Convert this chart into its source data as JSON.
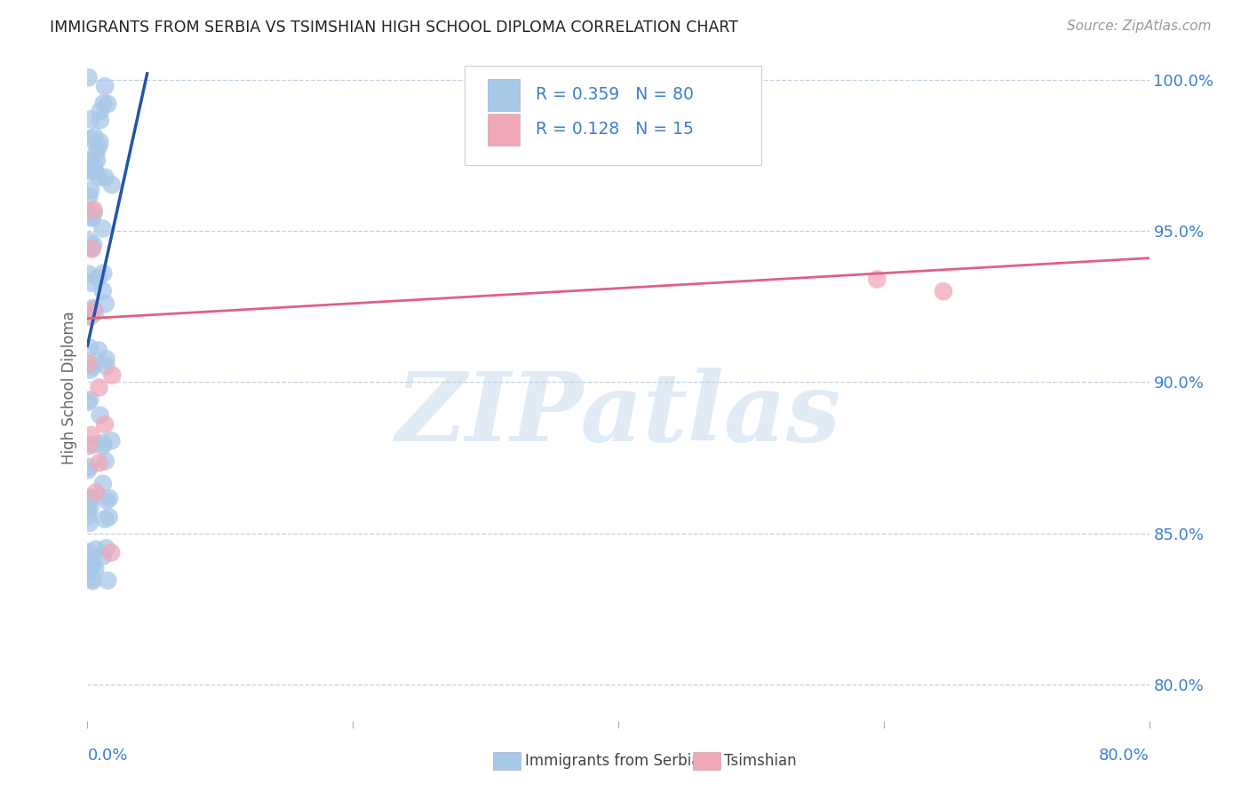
{
  "title": "IMMIGRANTS FROM SERBIA VS TSIMSHIAN HIGH SCHOOL DIPLOMA CORRELATION CHART",
  "source": "Source: ZipAtlas.com",
  "ylabel": "High School Diploma",
  "xlim": [
    0.0,
    0.8
  ],
  "ylim": [
    0.788,
    1.008
  ],
  "yticks": [
    0.8,
    0.85,
    0.9,
    0.95,
    1.0
  ],
  "ytick_labels": [
    "80.0%",
    "85.0%",
    "90.0%",
    "95.0%",
    "100.0%"
  ],
  "watermark": "ZIPatlas",
  "blue_color": "#A8C8E8",
  "pink_color": "#F0A8B8",
  "blue_line_color": "#2255AA",
  "pink_line_color": "#E06080",
  "legend_blue_R": "0.359",
  "legend_blue_N": "80",
  "legend_pink_R": "0.128",
  "legend_pink_N": "15",
  "blue_label": "Immigrants from Serbia",
  "pink_label": "Tsimshian",
  "background_color": "#ffffff",
  "grid_color": "#C0D0E0",
  "legend_text_color": "#3A7FD0",
  "blue_trend_x0": 0.0,
  "blue_trend_x1": 0.045,
  "blue_trend_y0": 0.912,
  "blue_trend_y1": 1.002,
  "pink_trend_x0": 0.0,
  "pink_trend_x1": 0.8,
  "pink_trend_y0": 0.921,
  "pink_trend_y1": 0.941
}
